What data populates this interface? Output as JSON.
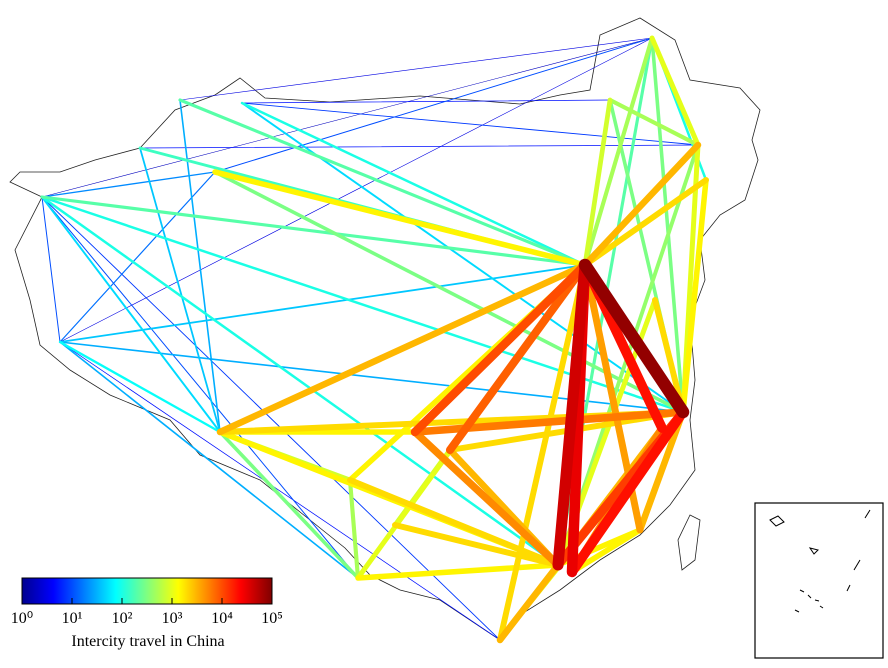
{
  "colorbar": {
    "label": "Intercity travel in China",
    "scale": "log",
    "lim": [
      1,
      100000
    ],
    "ticks": [
      {
        "value": 1,
        "label": "10⁰"
      },
      {
        "value": 10,
        "label": "10¹"
      },
      {
        "value": 100,
        "label": "10²"
      },
      {
        "value": 1000,
        "label": "10³"
      },
      {
        "value": 10000,
        "label": "10⁴"
      },
      {
        "value": 100000,
        "label": "10⁵"
      }
    ]
  },
  "flows": [
    2,
    3,
    3,
    5,
    5,
    5,
    8,
    8,
    10,
    10,
    10,
    15,
    20,
    30,
    30,
    30,
    40,
    40,
    50,
    50,
    80,
    100,
    100,
    100,
    100,
    150,
    200,
    200,
    200,
    300,
    300,
    300,
    300,
    400,
    500,
    500,
    500,
    800,
    800,
    800,
    1000,
    1000,
    1000,
    1000,
    1000,
    1500,
    1500,
    1500,
    1500,
    1500,
    1500,
    1500,
    1500,
    2000,
    2000,
    2000,
    2000,
    2000,
    2000,
    2000,
    3000,
    3000,
    3000,
    3000,
    3000,
    3000,
    4000,
    5000,
    5000,
    6000,
    8000,
    10000,
    12000,
    20000,
    20000,
    30000,
    40000,
    80000
  ]
}
